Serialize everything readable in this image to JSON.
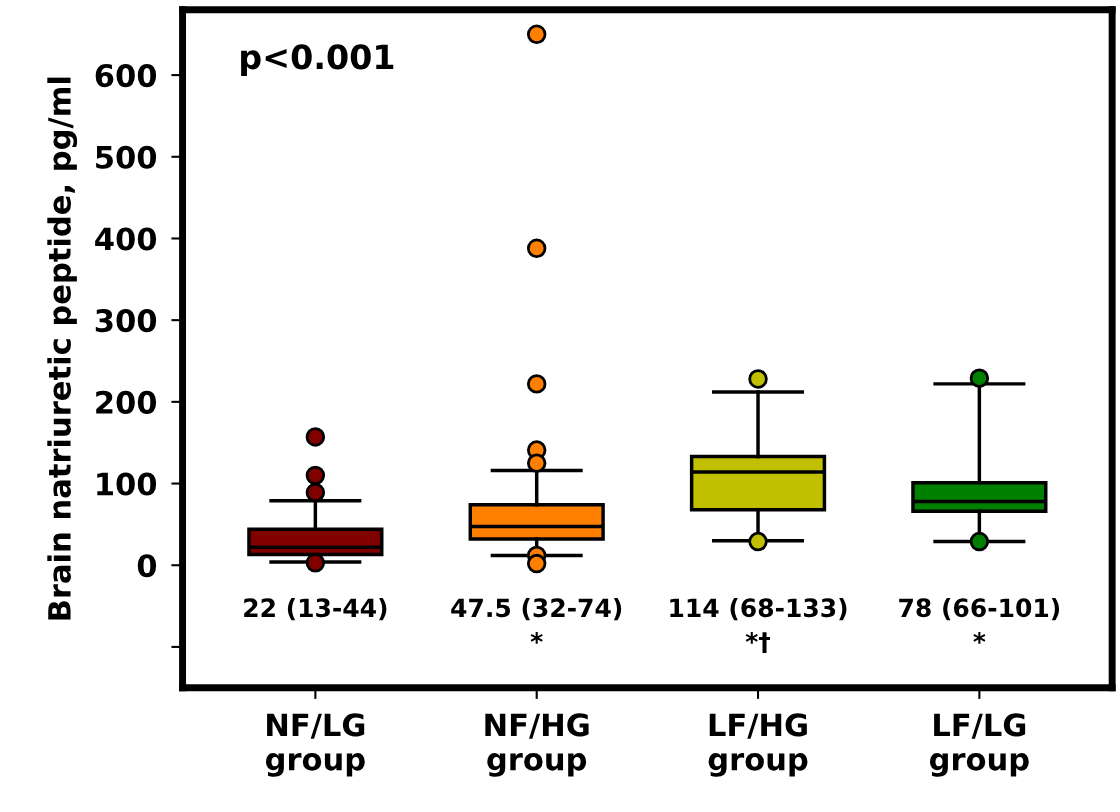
{
  "chart_data": {
    "type": "box",
    "ylabel": "Brain natriuretic peptide, pg/ml",
    "categories": [
      "NF/LG\ngroup",
      "NF/HG\ngroup",
      "LF/HG\ngroup",
      "LF/LG\ngroup"
    ],
    "colors": [
      "#800000",
      "#ff8000",
      "#c0c000",
      "#008000"
    ],
    "boxes": [
      {
        "low": 4,
        "q1": 13,
        "median": 22,
        "q3": 44,
        "high": 79,
        "outliers": [
          157,
          110,
          89,
          3
        ]
      },
      {
        "low": 12,
        "q1": 32,
        "median": 47.5,
        "q3": 74,
        "high": 116,
        "outliers": [
          650,
          388,
          222,
          141,
          125,
          12,
          2
        ]
      },
      {
        "low": 30,
        "q1": 68,
        "median": 114,
        "q3": 133,
        "high": 212,
        "outliers": [
          228,
          29
        ]
      },
      {
        "low": 29,
        "q1": 66,
        "median": 78,
        "q3": 101,
        "high": 222,
        "outliers": [
          229,
          29
        ]
      }
    ],
    "ylim": [
      -150,
      680
    ],
    "yticks": [
      {
        "value": -100,
        "label": null
      },
      0,
      100,
      200,
      300,
      400,
      500,
      600
    ],
    "annotations": [
      "p<0.001",
      "22 (13-44)",
      "47.5 (32-74)\n*",
      "114 (68-133)\n*†",
      "78 (66-101)\n*"
    ],
    "grid": false,
    "legend": false
  }
}
